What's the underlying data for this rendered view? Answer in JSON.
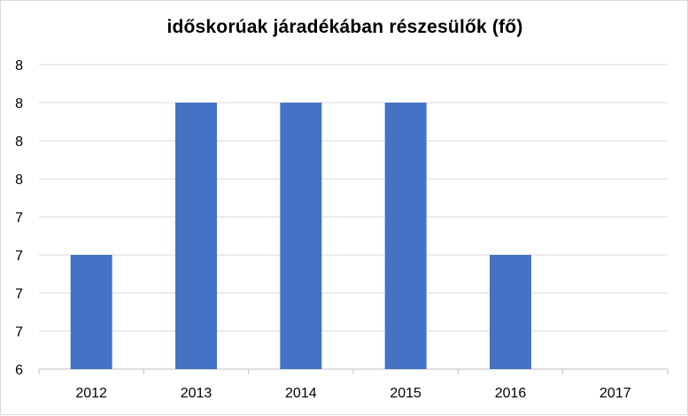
{
  "chart_data": {
    "type": "bar",
    "title": "időskorúak járadékában részesülők (fő)",
    "xlabel": "",
    "ylabel": "",
    "categories": [
      "2012",
      "2013",
      "2014",
      "2015",
      "2016",
      "2017"
    ],
    "values": [
      7,
      8,
      8,
      8,
      7,
      null
    ],
    "y_tick_labels": [
      "6",
      "7",
      "7",
      "7",
      "7",
      "8",
      "8",
      "8",
      "8"
    ],
    "ylim": [
      6,
      8
    ],
    "grid": true,
    "legend": "none",
    "bar_color": "#4472c4",
    "grid_color": "#d9d9d9",
    "axis_color": "#bfbfbf",
    "text_color": "#000000"
  }
}
